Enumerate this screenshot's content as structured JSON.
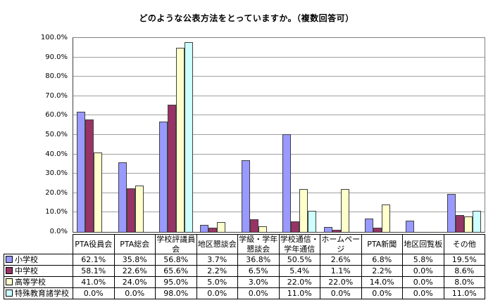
{
  "chart_data": {
    "type": "bar",
    "title": "どのような公表方法をとっていますか。（複数回答可）",
    "categories": [
      "PTA役員会",
      "PTA総会",
      "学校評議員会",
      "地区懇談会",
      "学級・学年懇談会",
      "学校通信・学年通信",
      "ホームページ",
      "PTA新聞",
      "地区回覧板",
      "その他"
    ],
    "series": [
      {
        "name": "小学校",
        "color": "#9999FF",
        "values": [
          62.1,
          35.8,
          56.8,
          3.7,
          36.8,
          50.5,
          2.6,
          6.8,
          5.8,
          19.5
        ]
      },
      {
        "name": "中学校",
        "color": "#993366",
        "values": [
          58.1,
          22.6,
          65.6,
          2.2,
          6.5,
          5.4,
          1.1,
          2.2,
          0.0,
          8.6
        ]
      },
      {
        "name": "高等学校",
        "color": "#FFFFCC",
        "values": [
          41.0,
          24.0,
          95.0,
          5.0,
          3.0,
          22.0,
          22.0,
          14.0,
          0.0,
          8.0
        ]
      },
      {
        "name": "特殊教育諸学校",
        "color": "#CCFFFF",
        "values": [
          0.0,
          0.0,
          98.0,
          0.0,
          0.0,
          11.0,
          0.0,
          0.0,
          0.0,
          11.0
        ]
      }
    ],
    "ylim": [
      0,
      100
    ],
    "ytick_step": 10,
    "ytick_labels": [
      "0.0%",
      "10.0%",
      "20.0%",
      "30.0%",
      "40.0%",
      "50.0%",
      "60.0%",
      "70.0%",
      "80.0%",
      "90.0%",
      "100.0%"
    ],
    "value_suffix": "%",
    "value_decimals": 1,
    "grid": true,
    "legend_position": "table-left",
    "table_shown": true
  },
  "colors": {
    "gridline": "#a0a0a0",
    "plot_border": "#808080",
    "axis": "#404040",
    "bar_border": "#404040",
    "table_border": "#000000",
    "background": "#ffffff"
  }
}
